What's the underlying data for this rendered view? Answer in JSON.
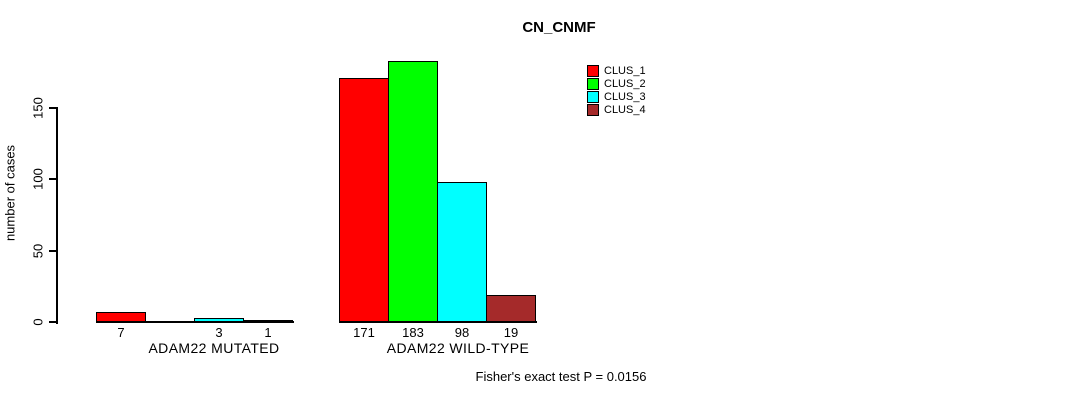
{
  "title": "CN_CNMF",
  "y_axis": {
    "label": "number of cases"
  },
  "footer": "Fisher's exact test P = 0.0156",
  "chart_data": {
    "type": "bar",
    "title": "CN_CNMF",
    "xlabel": "",
    "ylabel": "number of cases",
    "ylim": [
      0,
      150
    ],
    "yticks": [
      0,
      50,
      100,
      150
    ],
    "grid": false,
    "legend_position": "top-right",
    "categories": [
      "ADAM22 MUTATED",
      "ADAM22 WILD-TYPE"
    ],
    "series": [
      {
        "name": "CLUS_1",
        "color": "#ff0000",
        "values": [
          7,
          171
        ]
      },
      {
        "name": "CLUS_2",
        "color": "#00ff00",
        "values": [
          0,
          183
        ]
      },
      {
        "name": "CLUS_3",
        "color": "#00ffff",
        "values": [
          3,
          98
        ]
      },
      {
        "name": "CLUS_4",
        "color": "#a52a2a",
        "values": [
          1,
          19
        ]
      }
    ],
    "bar_value_labels": [
      [
        "7",
        "",
        "3",
        "1"
      ],
      [
        "171",
        "183",
        "98",
        "19"
      ]
    ],
    "annotation": "Fisher's exact test P = 0.0156"
  }
}
